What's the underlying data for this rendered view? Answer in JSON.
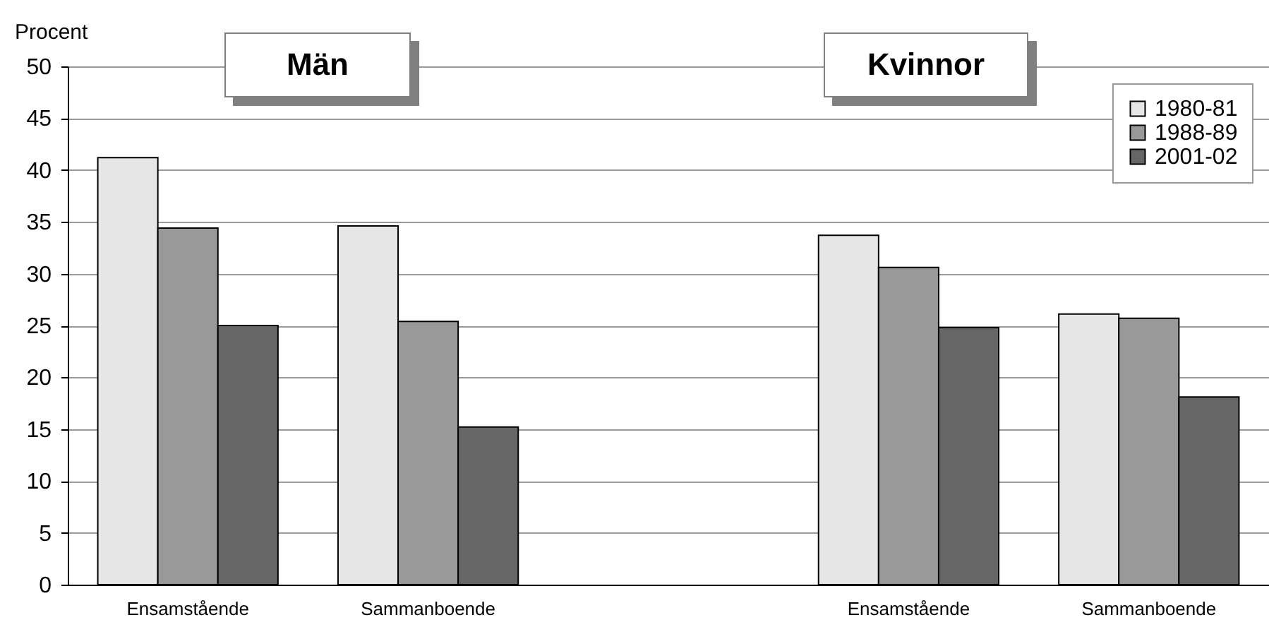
{
  "chart_data": {
    "type": "bar",
    "ylabel": "Procent",
    "categories": [
      "Ensamstående",
      "Sammanboende",
      null,
      "Ensamstående",
      "Sammanboende"
    ],
    "series": [
      {
        "name": "1980-81",
        "color": "#e6e6e6",
        "values": [
          41.2,
          34.6,
          null,
          33.7,
          26.1
        ]
      },
      {
        "name": "1988-89",
        "color": "#999999",
        "values": [
          34.4,
          25.4,
          null,
          30.6,
          25.7
        ]
      },
      {
        "name": "2001-02",
        "color": "#666666",
        "values": [
          25.0,
          15.2,
          null,
          24.8,
          18.1
        ]
      }
    ],
    "ylim": [
      0,
      50
    ],
    "yticks": [
      0,
      5,
      10,
      15,
      20,
      25,
      30,
      35,
      40,
      45,
      50
    ],
    "grid": "y",
    "legend": "top right",
    "annotations": [
      "Män",
      "Kvinnor"
    ]
  }
}
